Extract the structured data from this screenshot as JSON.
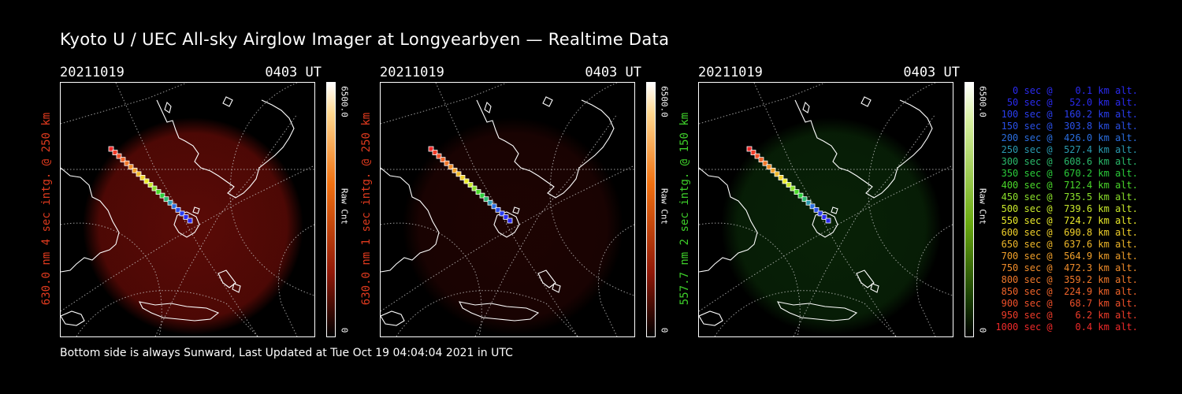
{
  "title": "Kyoto U / UEC All-sky Airglow Imager at Longyearbyen — Realtime Data",
  "footer": "Bottom side is always Sunward, Last Updated at Tue Oct 19 04:04:04 2021 in UTC",
  "colorbar": {
    "max_label": "6500.0",
    "min_label": "0",
    "unit_label": "Raw Cnt"
  },
  "panels": [
    {
      "date": "20211019",
      "time": "0403 UT",
      "side_label": "630.0 nm 4 sec intg. @ 250 km",
      "label_color": "#e03a1e",
      "theme": "red",
      "glow": "#5a0a06",
      "glow_opacity": 1.0
    },
    {
      "date": "20211019",
      "time": "0403 UT",
      "side_label": "630.0 nm 1 sec intg. @ 250 km",
      "label_color": "#e03a1e",
      "theme": "red",
      "glow": "#2a0503",
      "glow_opacity": 0.7
    },
    {
      "date": "20211019",
      "time": "0403 UT",
      "side_label": "557.7 nm 2 sec intg. @ 150 km",
      "label_color": "#3ecf2a",
      "theme": "green",
      "glow": "#0a2a08",
      "glow_opacity": 0.8
    }
  ],
  "legend": [
    {
      "text": "   0 sec @    0.1 km alt.",
      "color": "#2a2af0"
    },
    {
      "text": "  50 sec @   52.0 km alt.",
      "color": "#2a2af0"
    },
    {
      "text": " 100 sec @  160.2 km alt.",
      "color": "#2a3ef0"
    },
    {
      "text": " 150 sec @  303.8 km alt.",
      "color": "#2a50e8"
    },
    {
      "text": " 200 sec @  426.0 km alt.",
      "color": "#2a6ee0"
    },
    {
      "text": " 250 sec @  527.4 km alt.",
      "color": "#2a9ab0"
    },
    {
      "text": " 300 sec @  608.6 km alt.",
      "color": "#2ab86a"
    },
    {
      "text": " 350 sec @  670.2 km alt.",
      "color": "#2acc3a"
    },
    {
      "text": " 400 sec @  712.4 km alt.",
      "color": "#4ad82a"
    },
    {
      "text": " 450 sec @  735.5 km alt.",
      "color": "#8ae02a"
    },
    {
      "text": " 500 sec @  739.6 km alt.",
      "color": "#c8e82a"
    },
    {
      "text": " 550 sec @  724.7 km alt.",
      "color": "#eaea2a"
    },
    {
      "text": " 600 sec @  690.8 km alt.",
      "color": "#f0d02a"
    },
    {
      "text": " 650 sec @  637.6 km alt.",
      "color": "#f0b82a"
    },
    {
      "text": " 700 sec @  564.9 km alt.",
      "color": "#f0a02a"
    },
    {
      "text": " 750 sec @  472.3 km alt.",
      "color": "#f08c2a"
    },
    {
      "text": " 800 sec @  359.2 km alt.",
      "color": "#f0782a"
    },
    {
      "text": " 850 sec @  224.9 km alt.",
      "color": "#f0642a"
    },
    {
      "text": " 900 sec @   68.7 km alt.",
      "color": "#f0502a"
    },
    {
      "text": " 950 sec @    6.2 km alt.",
      "color": "#f03c2a"
    },
    {
      "text": "1000 sec @    0.4 km alt.",
      "color": "#f02a2a"
    }
  ]
}
